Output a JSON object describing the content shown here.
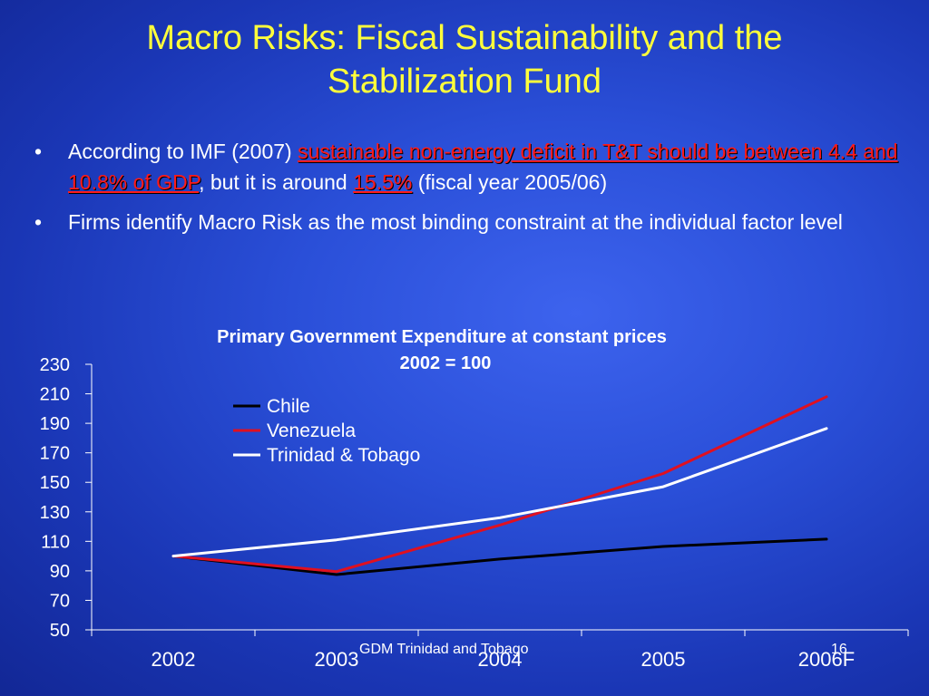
{
  "slide": {
    "title_line1": "Macro Risks: Fiscal Sustainability and the",
    "title_line2": "Stabilization Fund",
    "bullet_char": "•",
    "bullet1": {
      "t1": "According to IMF (2007) ",
      "h1": "sustainable non-energy deficit in T&T should be between 4.4 and 10.8% of GDP",
      "t2": ", but it is around ",
      "h2": "15.5%",
      "t3": " (fiscal year 2005/06)"
    },
    "bullet2": {
      "text": "Firms identify Macro Risk as the most binding constraint at the individual factor level"
    },
    "footer": "GDM Trinidad and Tobago",
    "page_number": "16"
  },
  "colors": {
    "title": "#ffff3b",
    "highlight": "#ff1a1a",
    "text": "#ffffff"
  },
  "chart_data": {
    "type": "line",
    "title": "Primary Government Expenditure at constant prices",
    "subtitle": "2002 = 100",
    "xlabel": "",
    "ylabel": "",
    "categories": [
      "2002",
      "2003",
      "2004",
      "2005",
      "2006F"
    ],
    "ylim": [
      50,
      230
    ],
    "yticks": [
      50,
      70,
      90,
      110,
      130,
      150,
      170,
      190,
      210,
      230
    ],
    "grid": false,
    "legend_position": "top-left",
    "series": [
      {
        "name": "Chile",
        "color": "#000000",
        "values": [
          100,
          87.5,
          98,
          106.5,
          111.5
        ]
      },
      {
        "name": "Venezuela",
        "color": "#e01020",
        "values": [
          100,
          89.5,
          121,
          156,
          208
        ]
      },
      {
        "name": "Trinidad & Tobago",
        "color": "#ffffff",
        "values": [
          100,
          111,
          126,
          147,
          186.5
        ]
      }
    ]
  }
}
